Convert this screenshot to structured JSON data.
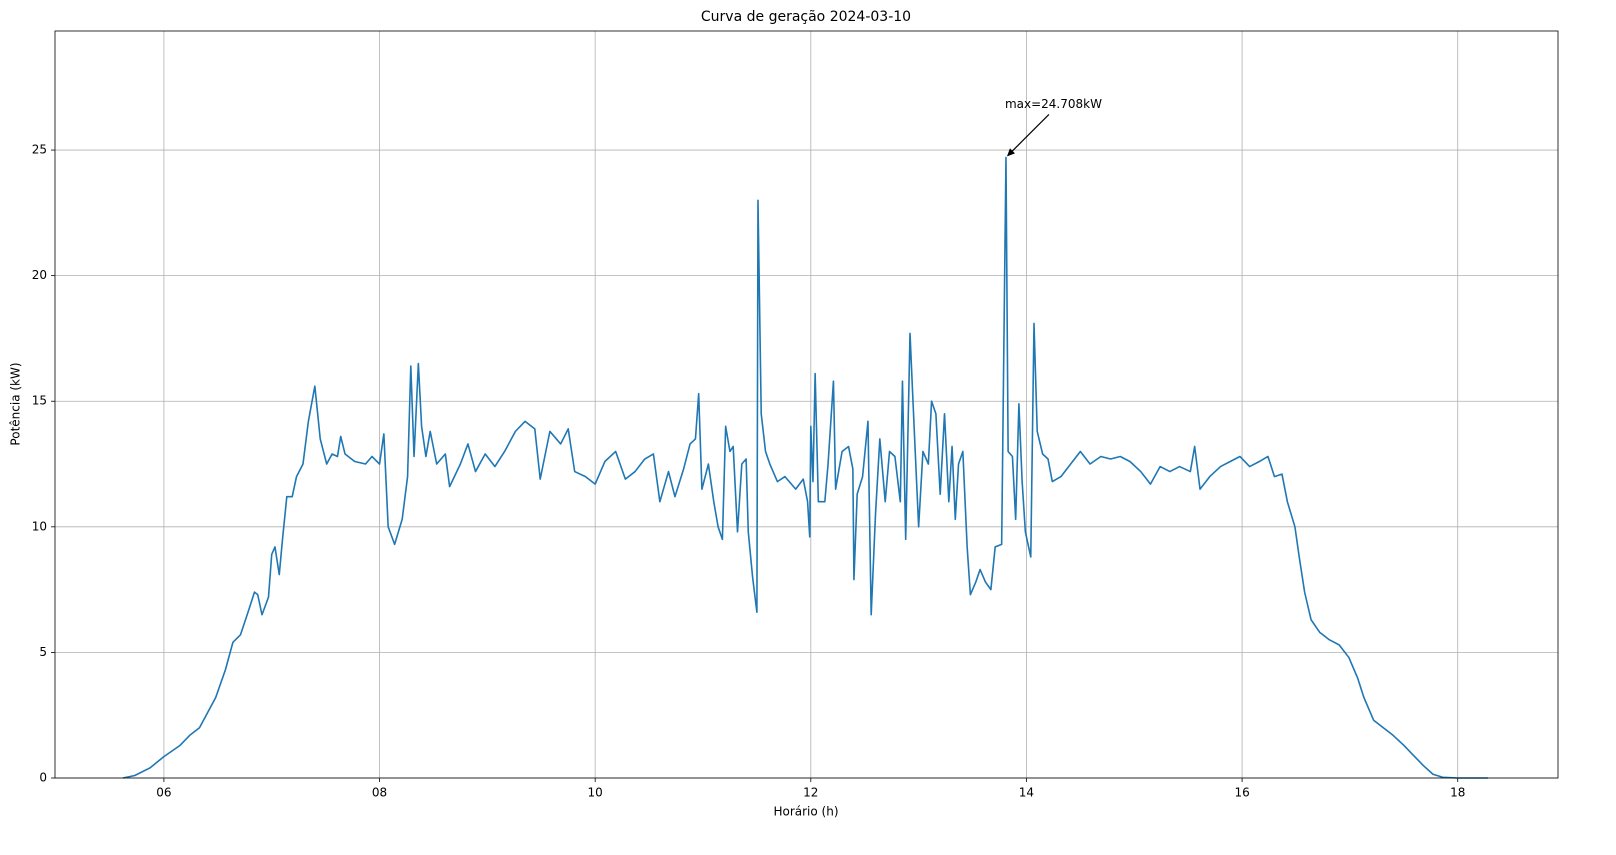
{
  "chart_data": {
    "type": "line",
    "title": "Curva de geração 2024-03-10",
    "xlabel": "Horário (h)",
    "ylabel": "Potência (kW)",
    "color": "#1f77b4",
    "grid": true,
    "xlim": [
      4.99,
      18.93
    ],
    "ylim": [
      0,
      29.74
    ],
    "xticks": [
      {
        "value": 6,
        "label": "06"
      },
      {
        "value": 8,
        "label": "08"
      },
      {
        "value": 10,
        "label": "10"
      },
      {
        "value": 12,
        "label": "12"
      },
      {
        "value": 14,
        "label": "14"
      },
      {
        "value": 16,
        "label": "16"
      },
      {
        "value": 18,
        "label": "18"
      }
    ],
    "yticks": [
      0,
      5,
      10,
      15,
      20,
      25
    ],
    "annotations": [
      {
        "text": "max=24.708kW"
      }
    ],
    "x": [
      5.62,
      5.73,
      5.87,
      6.0,
      6.15,
      6.24,
      6.33,
      6.43,
      6.48,
      6.57,
      6.64,
      6.71,
      6.78,
      6.84,
      6.87,
      6.91,
      6.97,
      7.0,
      7.03,
      7.07,
      7.1,
      7.14,
      7.19,
      7.23,
      7.29,
      7.34,
      7.4,
      7.45,
      7.51,
      7.56,
      7.61,
      7.64,
      7.68,
      7.77,
      7.87,
      7.93,
      8.0,
      8.04,
      8.08,
      8.14,
      8.21,
      8.26,
      8.29,
      8.32,
      8.36,
      8.39,
      8.43,
      8.47,
      8.53,
      8.61,
      8.65,
      8.75,
      8.82,
      8.89,
      8.98,
      9.07,
      9.16,
      9.26,
      9.35,
      9.44,
      9.49,
      9.58,
      9.68,
      9.75,
      9.81,
      9.91,
      10.0,
      10.09,
      10.19,
      10.28,
      10.37,
      10.46,
      10.54,
      10.6,
      10.68,
      10.74,
      10.82,
      10.88,
      10.93,
      10.96,
      10.99,
      11.05,
      11.1,
      11.14,
      11.18,
      11.21,
      11.25,
      11.28,
      11.32,
      11.36,
      11.4,
      11.42,
      11.46,
      11.5,
      11.51,
      11.54,
      11.58,
      11.62,
      11.69,
      11.76,
      11.86,
      11.93,
      11.97,
      11.99,
      12.0,
      12.02,
      12.04,
      12.07,
      12.13,
      12.16,
      12.21,
      12.23,
      12.29,
      12.35,
      12.39,
      12.4,
      12.43,
      12.48,
      12.53,
      12.56,
      12.6,
      12.64,
      12.69,
      12.73,
      12.78,
      12.83,
      12.85,
      12.88,
      12.92,
      12.96,
      13.0,
      13.04,
      13.09,
      13.12,
      13.16,
      13.2,
      13.24,
      13.28,
      13.31,
      13.34,
      13.37,
      13.41,
      13.45,
      13.48,
      13.53,
      13.57,
      13.62,
      13.67,
      13.71,
      13.77,
      13.81,
      13.83,
      13.87,
      13.9,
      13.93,
      13.96,
      13.99,
      14.04,
      14.07,
      14.1,
      14.15,
      14.2,
      14.24,
      14.32,
      14.41,
      14.5,
      14.59,
      14.69,
      14.78,
      14.87,
      14.96,
      15.06,
      15.15,
      15.24,
      15.33,
      15.42,
      15.52,
      15.56,
      15.61,
      15.7,
      15.8,
      15.89,
      15.98,
      16.07,
      16.16,
      16.24,
      16.3,
      16.37,
      16.42,
      16.49,
      16.53,
      16.58,
      16.64,
      16.72,
      16.81,
      16.9,
      16.99,
      17.07,
      17.13,
      17.22,
      17.31,
      17.4,
      17.5,
      17.59,
      17.68,
      17.77,
      17.86,
      18.0,
      18.28
    ],
    "values": [
      0,
      0.1,
      0.4,
      0.85,
      1.3,
      1.7,
      2.0,
      2.8,
      3.2,
      4.3,
      5.4,
      5.7,
      6.6,
      7.4,
      7.3,
      6.5,
      7.2,
      8.9,
      9.2,
      8.1,
      9.5,
      11.2,
      11.2,
      12.0,
      12.5,
      14.2,
      15.6,
      13.5,
      12.5,
      12.9,
      12.8,
      13.6,
      12.9,
      12.6,
      12.5,
      12.8,
      12.5,
      13.7,
      10.0,
      9.3,
      10.3,
      12.0,
      16.4,
      12.8,
      16.5,
      14.0,
      12.8,
      13.8,
      12.5,
      12.9,
      11.6,
      12.5,
      13.3,
      12.2,
      12.9,
      12.4,
      13.0,
      13.8,
      14.2,
      13.9,
      11.9,
      13.8,
      13.3,
      13.9,
      12.2,
      12.0,
      11.7,
      12.6,
      13.0,
      11.9,
      12.2,
      12.7,
      12.9,
      11.0,
      12.2,
      11.2,
      12.3,
      13.3,
      13.5,
      15.3,
      11.5,
      12.5,
      11.0,
      10.0,
      9.5,
      14.0,
      13.0,
      13.2,
      9.8,
      12.5,
      12.7,
      9.8,
      8.0,
      6.6,
      23.0,
      14.5,
      13.0,
      12.5,
      11.8,
      12.0,
      11.5,
      11.9,
      11.0,
      9.6,
      14.0,
      11.8,
      16.1,
      11.0,
      11.0,
      12.5,
      15.8,
      11.5,
      13.0,
      13.2,
      12.3,
      7.9,
      11.3,
      12.0,
      14.2,
      6.5,
      10.5,
      13.5,
      11.0,
      13.0,
      12.8,
      11.0,
      15.8,
      9.5,
      17.7,
      13.8,
      10.0,
      13.0,
      12.5,
      15.0,
      14.5,
      11.3,
      14.5,
      11.0,
      13.2,
      10.3,
      12.5,
      13.0,
      9.2,
      7.3,
      7.8,
      8.3,
      7.8,
      7.5,
      9.2,
      9.3,
      24.708,
      13.0,
      12.8,
      10.3,
      14.9,
      11.8,
      9.8,
      8.8,
      18.1,
      13.8,
      12.9,
      12.7,
      11.8,
      12.0,
      12.5,
      13.0,
      12.5,
      12.8,
      12.7,
      12.8,
      12.6,
      12.2,
      11.7,
      12.4,
      12.2,
      12.4,
      12.2,
      13.2,
      11.5,
      12.0,
      12.4,
      12.6,
      12.8,
      12.4,
      12.6,
      12.8,
      12.0,
      12.1,
      11.0,
      10.0,
      8.8,
      7.4,
      6.3,
      5.8,
      5.5,
      5.3,
      4.8,
      4.0,
      3.2,
      2.3,
      2.0,
      1.7,
      1.3,
      0.9,
      0.5,
      0.15,
      0.03,
      0.0,
      0.0
    ]
  }
}
